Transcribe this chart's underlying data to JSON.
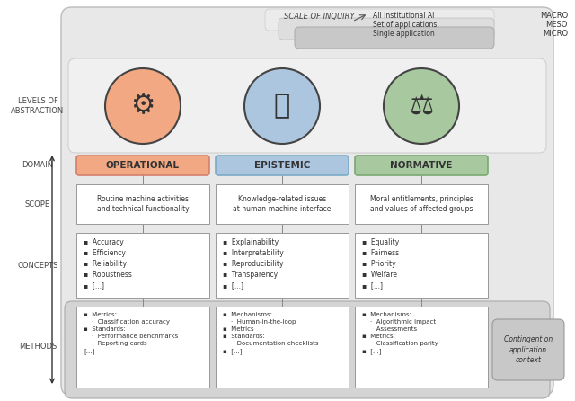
{
  "scale_label": "SCALE OF INQUIRY",
  "scale_items": [
    "All institutional AI",
    "Set of applications",
    "Single application"
  ],
  "scale_levels": [
    "MACRO",
    "MESO",
    "MICRO"
  ],
  "left_labels": [
    "LEVELS OF\nABSTRACTION",
    "DOMAIN",
    "SCOPE",
    "CONCEPTS",
    "METHODS"
  ],
  "domains": [
    "OPERATIONAL",
    "EPISTEMIC",
    "NORMATIVE"
  ],
  "domain_colors": [
    "#f2a882",
    "#adc6e0",
    "#a8c8a0"
  ],
  "domain_border_colors": [
    "#d4806a",
    "#7aaac8",
    "#78a870"
  ],
  "icon_bg_colors": [
    "#f2a882",
    "#adc6e0",
    "#a8c8a0"
  ],
  "icon_border_colors": [
    "#555555",
    "#555555",
    "#555555"
  ],
  "scope_texts": [
    "Routine machine activities\nand technical functionality",
    "Knowledge-related issues\nat human-machine interface",
    "Moral entitlements, principles\nand values of affected groups"
  ],
  "concepts_texts": [
    "▪  Accuracy\n▪  Efficiency\n▪  Reliability\n▪  Robustness\n▪  [...]",
    "▪  Explainability\n▪  Interpretability\n▪  Reproducibility\n▪  Transparency\n▪  [...]",
    "▪  Equality\n▪  Fairness\n▪  Priority\n▪  Welfare\n▪  [...]"
  ],
  "methods_texts": [
    "▪  Metrics:\n    ·  Classification accuracy\n▪  Standards:\n    ·  Performance benchmarks\n    ·  Reporting cards\n[...]",
    "▪  Mechanisms:\n    ·  Human-in-the-loop\n▪  Metrics\n▪  Standards:\n    ·  Documentation checklists\n▪  [...]",
    "▪  Mechanisms:\n    ·  Algorithmic impact\n       Assessments\n▪  Metrics:\n    ·  Classification parity\n▪  [...]"
  ],
  "contingent_text": "Contingent on\napplication\ncontext",
  "bg_main": "#e8e8e8",
  "bg_icons": "#f0f0f0",
  "bg_methods": "#d8d8d8",
  "white": "#ffffff"
}
